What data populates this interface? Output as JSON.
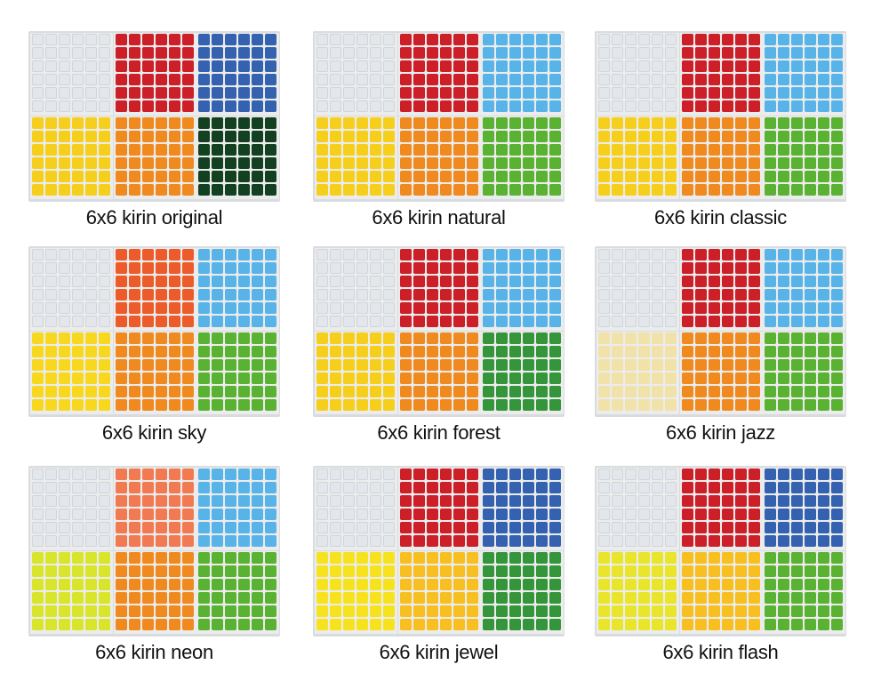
{
  "stickers": [
    {
      "caption": "6x6 kirin original",
      "colors": {
        "white": "#e3e6ea",
        "red": "#cc1f27",
        "blue": "#3462b0",
        "yellow": "#f6cf1c",
        "orange": "#f08a1e",
        "green": "#124020"
      }
    },
    {
      "caption": "6x6 kirin natural",
      "colors": {
        "white": "#e3e6ea",
        "red": "#cc1f27",
        "blue": "#58b4e8",
        "yellow": "#f6cf1c",
        "orange": "#f08a1e",
        "green": "#5ab233"
      }
    },
    {
      "caption": "6x6 kirin classic",
      "colors": {
        "white": "#e3e6ea",
        "red": "#cc1f27",
        "blue": "#58b4e8",
        "yellow": "#f6cf1c",
        "orange": "#f08a1e",
        "green": "#5ab233"
      }
    },
    {
      "caption": "6x6 kirin sky",
      "colors": {
        "white": "#e3e6ea",
        "red": "#ee5b2a",
        "blue": "#58b4e8",
        "yellow": "#f8d81e",
        "orange": "#f08a1e",
        "green": "#5ab233"
      }
    },
    {
      "caption": "6x6 kirin forest",
      "colors": {
        "white": "#e3e6ea",
        "red": "#cc1f27",
        "blue": "#58b4e8",
        "yellow": "#f6cf1c",
        "orange": "#f08a1e",
        "green": "#34953a"
      }
    },
    {
      "caption": "6x6 kirin jazz",
      "colors": {
        "white": "#e3e6ea",
        "red": "#cc1f27",
        "blue": "#58b4e8",
        "yellow": "#f0e2a8",
        "orange": "#f08a1e",
        "green": "#5ab233"
      }
    },
    {
      "caption": "6x6 kirin neon",
      "colors": {
        "white": "#e3e6ea",
        "red": "#f27a52",
        "blue": "#58b4e8",
        "yellow": "#d8e52a",
        "orange": "#f08a1e",
        "green": "#5ab233"
      }
    },
    {
      "caption": "6x6 kirin jewel",
      "colors": {
        "white": "#e3e6ea",
        "red": "#cc1f27",
        "blue": "#3462b0",
        "yellow": "#f6e31e",
        "orange": "#f7bf1f",
        "green": "#34953a"
      }
    },
    {
      "caption": "6x6 kirin flash",
      "colors": {
        "white": "#e3e6ea",
        "red": "#cc1f27",
        "blue": "#3462b0",
        "yellow": "#e8e52a",
        "orange": "#f7bf1f",
        "green": "#5ab233"
      }
    }
  ]
}
